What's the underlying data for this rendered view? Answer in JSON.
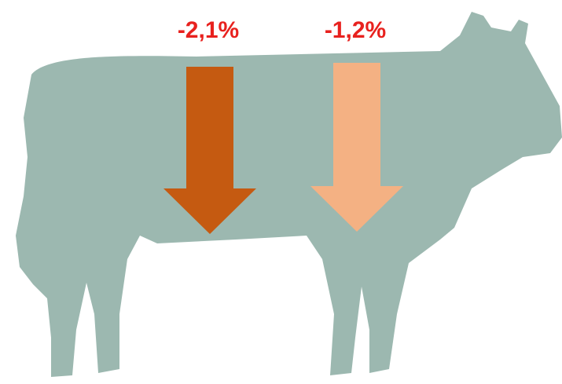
{
  "arrows": [
    {
      "label": "-2,1%",
      "color": "#c55a11",
      "label_color": "#e8211e"
    },
    {
      "label": "-1,2%",
      "color": "#f4b183",
      "label_color": "#e8211e"
    }
  ]
}
